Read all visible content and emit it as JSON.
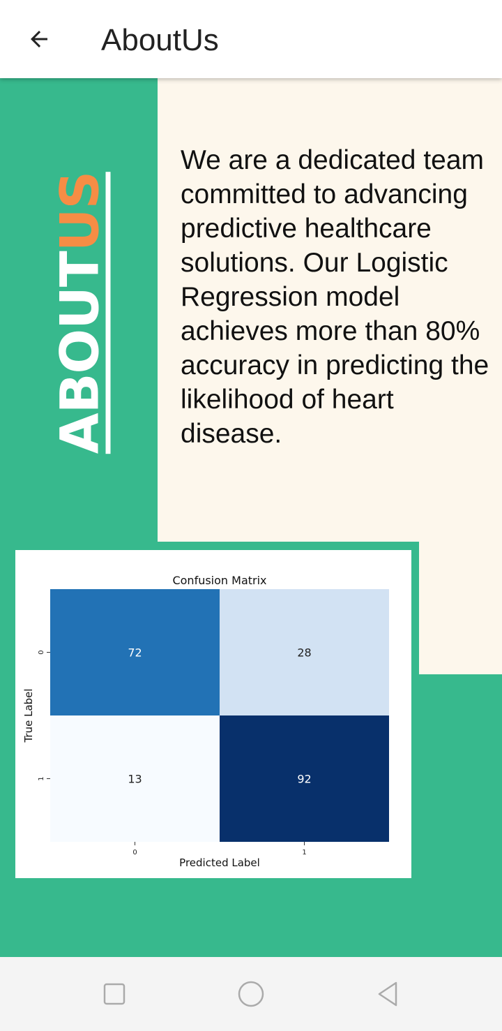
{
  "appbar": {
    "back_icon": "arrow-left-icon",
    "title": "AboutUs"
  },
  "hero": {
    "word1": "ABOUT",
    "word2": "US",
    "accent_color": "#f68d45",
    "background_color": "#37b98d"
  },
  "description": "We are a dedicated team committed to advancing predictive healthcare solutions. Our Logistic Regression model achieves more than 80% accuracy in predicting the likelihood of heart disease.",
  "chart_data": {
    "type": "heatmap",
    "title": "Confusion Matrix",
    "xlabel": "Predicted Label",
    "ylabel": "True Label",
    "x_categories": [
      "0",
      "1"
    ],
    "y_categories": [
      "0",
      "1"
    ],
    "values": [
      [
        72,
        28
      ],
      [
        13,
        92
      ]
    ],
    "colormap": "Blues"
  },
  "navbar": {
    "recent_icon": "square-icon",
    "home_icon": "circle-icon",
    "back_icon": "triangle-back-icon"
  }
}
